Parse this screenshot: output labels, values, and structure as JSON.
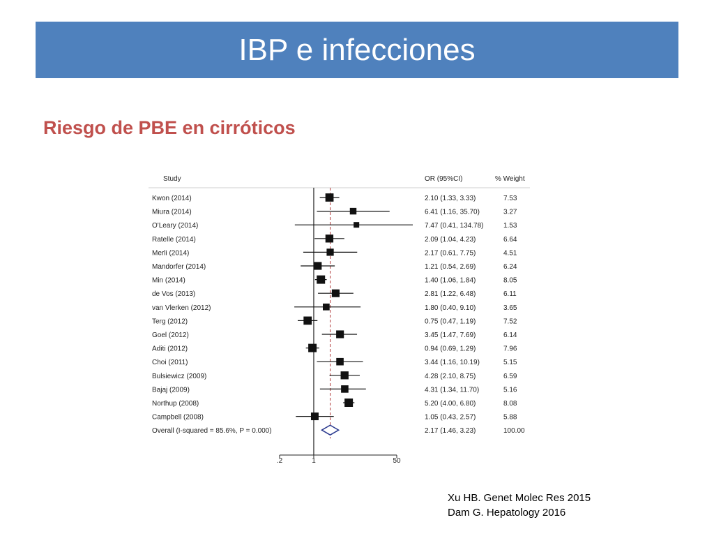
{
  "slide": {
    "title": "IBP e infecciones",
    "subtitle": "Riesgo de PBE en cirróticos",
    "references": [
      "Xu HB. Genet Molec Res 2015",
      "Dam G. Hepatology 2016"
    ],
    "colors": {
      "title_bar": "#4f81bd",
      "subtitle": "#c0504d",
      "reference_line": "#b03a3a",
      "overall_diamond": "#2b3a8f"
    }
  },
  "chart_data": {
    "type": "forest",
    "x_scale": "log",
    "xlim": [
      0.2,
      50
    ],
    "x_ticks": [
      ".2",
      "1",
      "50"
    ],
    "tick_values": [
      0.2,
      1,
      50
    ],
    "null_line": 1,
    "overall_line": 2.17,
    "headers": {
      "study": "Study",
      "or": "OR (95%CI)",
      "weight": "% Weight"
    },
    "studies": [
      {
        "label": "Kwon (2014)",
        "or": 2.1,
        "lo": 1.33,
        "hi": 3.33,
        "ci_text": "2.10 (1.33, 3.33)",
        "weight": 7.53,
        "weight_text": "7.53"
      },
      {
        "label": "Miura (2014)",
        "or": 6.41,
        "lo": 1.16,
        "hi": 35.7,
        "ci_text": "6.41 (1.16, 35.70)",
        "weight": 3.27,
        "weight_text": "3.27"
      },
      {
        "label": "O'Leary (2014)",
        "or": 7.47,
        "lo": 0.41,
        "hi": 134.78,
        "ci_text": "7.47 (0.41, 134.78)",
        "weight": 1.53,
        "weight_text": "1.53"
      },
      {
        "label": "Ratelle (2014)",
        "or": 2.09,
        "lo": 1.04,
        "hi": 4.23,
        "ci_text": "2.09 (1.04, 4.23)",
        "weight": 6.64,
        "weight_text": "6.64"
      },
      {
        "label": "Merli (2014)",
        "or": 2.17,
        "lo": 0.61,
        "hi": 7.75,
        "ci_text": "2.17 (0.61, 7.75)",
        "weight": 4.51,
        "weight_text": "4.51"
      },
      {
        "label": "Mandorfer (2014)",
        "or": 1.21,
        "lo": 0.54,
        "hi": 2.69,
        "ci_text": "1.21 (0.54, 2.69)",
        "weight": 6.24,
        "weight_text": "6.24"
      },
      {
        "label": "Min (2014)",
        "or": 1.4,
        "lo": 1.06,
        "hi": 1.84,
        "ci_text": "1.40 (1.06, 1.84)",
        "weight": 8.05,
        "weight_text": "8.05"
      },
      {
        "label": "de Vos (2013)",
        "or": 2.81,
        "lo": 1.22,
        "hi": 6.48,
        "ci_text": "2.81 (1.22, 6.48)",
        "weight": 6.11,
        "weight_text": "6.11"
      },
      {
        "label": "van Vlerken (2012)",
        "or": 1.8,
        "lo": 0.4,
        "hi": 9.1,
        "ci_text": "1.80 (0.40, 9.10)",
        "weight": 3.65,
        "weight_text": "3.65"
      },
      {
        "label": "Terg (2012)",
        "or": 0.75,
        "lo": 0.47,
        "hi": 1.19,
        "ci_text": "0.75 (0.47, 1.19)",
        "weight": 7.52,
        "weight_text": "7.52"
      },
      {
        "label": "Goel (2012)",
        "or": 3.45,
        "lo": 1.47,
        "hi": 7.69,
        "ci_text": "3.45 (1.47, 7.69)",
        "weight": 6.14,
        "weight_text": "6.14"
      },
      {
        "label": "Aditi (2012)",
        "or": 0.94,
        "lo": 0.69,
        "hi": 1.29,
        "ci_text": "0.94 (0.69, 1.29)",
        "weight": 7.96,
        "weight_text": "7.96"
      },
      {
        "label": "Choi (2011)",
        "or": 3.44,
        "lo": 1.16,
        "hi": 10.19,
        "ci_text": "3.44 (1.16, 10.19)",
        "weight": 5.15,
        "weight_text": "5.15"
      },
      {
        "label": "Bulsiewicz (2009)",
        "or": 4.28,
        "lo": 2.1,
        "hi": 8.75,
        "ci_text": "4.28 (2.10, 8.75)",
        "weight": 6.59,
        "weight_text": "6.59"
      },
      {
        "label": "Bajaj (2009)",
        "or": 4.31,
        "lo": 1.34,
        "hi": 11.7,
        "ci_text": "4.31 (1.34, 11.70)",
        "weight": 5.16,
        "weight_text": "5.16"
      },
      {
        "label": "Northup (2008)",
        "or": 5.2,
        "lo": 4.0,
        "hi": 6.8,
        "ci_text": "5.20 (4.00, 6.80)",
        "weight": 8.08,
        "weight_text": "8.08"
      },
      {
        "label": "Campbell (2008)",
        "or": 1.05,
        "lo": 0.43,
        "hi": 2.57,
        "ci_text": "1.05 (0.43, 2.57)",
        "weight": 5.88,
        "weight_text": "5.88"
      }
    ],
    "overall": {
      "label": "Overall  (I-squared = 85.6%, P = 0.000)",
      "or": 2.17,
      "lo": 1.46,
      "hi": 3.23,
      "ci_text": "2.17 (1.46, 3.23)",
      "weight_text": "100.00"
    }
  }
}
